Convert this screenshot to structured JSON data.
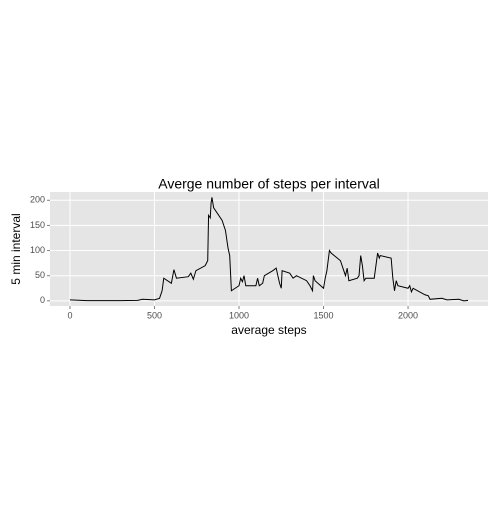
{
  "chart_data": {
    "type": "line",
    "title": "Averge number of steps per interval",
    "x_label": "average steps",
    "y_label": "5 min interval",
    "color": "#000000",
    "grid": true,
    "xlim": [
      -118,
      2473
    ],
    "ylim": [
      -10.3,
      216.5
    ],
    "xticks": [
      0,
      500,
      1000,
      1500,
      2000
    ],
    "yticks": [
      0,
      50,
      100,
      150,
      200
    ],
    "x": [
      0,
      100,
      200,
      300,
      400,
      430,
      500,
      530,
      545,
      555,
      600,
      615,
      630,
      700,
      715,
      730,
      745,
      800,
      815,
      820,
      830,
      835,
      840,
      850,
      900,
      920,
      935,
      945,
      955,
      1000,
      1010,
      1020,
      1030,
      1040,
      1100,
      1110,
      1120,
      1140,
      1150,
      1200,
      1220,
      1230,
      1240,
      1250,
      1255,
      1300,
      1320,
      1340,
      1400,
      1420,
      1435,
      1440,
      1450,
      1500,
      1510,
      1520,
      1535,
      1545,
      1600,
      1620,
      1630,
      1640,
      1650,
      1700,
      1710,
      1720,
      1730,
      1740,
      1750,
      1800,
      1820,
      1830,
      1835,
      1900,
      1910,
      1920,
      1930,
      1940,
      2000,
      2010,
      2020,
      2030,
      2100,
      2120,
      2130,
      2200,
      2230,
      2300,
      2330,
      2355
    ],
    "series": [
      {
        "name": "steps",
        "color": "#000000",
        "values": [
          2,
          0.5,
          0.3,
          0.5,
          1,
          3,
          2,
          5,
          20,
          45,
          35,
          62,
          45,
          48,
          55,
          43,
          60,
          70,
          80,
          170,
          165,
          195,
          206,
          185,
          160,
          140,
          105,
          90,
          20,
          30,
          45,
          38,
          50,
          30,
          30,
          45,
          30,
          35,
          50,
          60,
          65,
          50,
          35,
          25,
          60,
          55,
          45,
          50,
          40,
          30,
          20,
          50,
          40,
          25,
          45,
          60,
          100,
          95,
          80,
          60,
          50,
          65,
          40,
          45,
          50,
          90,
          70,
          40,
          45,
          45,
          95,
          85,
          90,
          85,
          45,
          20,
          40,
          30,
          25,
          30,
          18,
          25,
          12,
          10,
          3,
          5,
          2,
          3,
          0,
          1
        ]
      }
    ]
  }
}
